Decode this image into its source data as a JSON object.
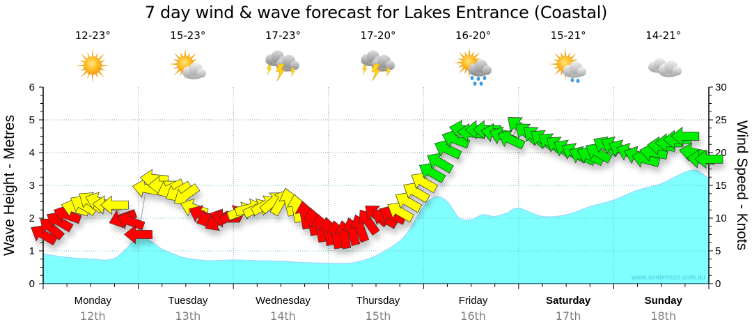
{
  "title": "7 day wind & wave forecast for Lakes Entrance (Coastal)",
  "days": [
    {
      "day": "Monday",
      "date": "12th",
      "temp": "12-23°",
      "icon": "sun-icon",
      "bold": false
    },
    {
      "day": "Tuesday",
      "date": "13th",
      "temp": "15-23°",
      "icon": "sun-cloud-icon",
      "bold": false
    },
    {
      "day": "Wednesday",
      "date": "14th",
      "temp": "17-23°",
      "icon": "thunderstorm-icon",
      "bold": false
    },
    {
      "day": "Thursday",
      "date": "15th",
      "temp": "17-20°",
      "icon": "thunderstorm-icon",
      "bold": false
    },
    {
      "day": "Friday",
      "date": "16th",
      "temp": "16-20°",
      "icon": "sun-cloud-rain-icon",
      "bold": false
    },
    {
      "day": "Saturday",
      "date": "17th",
      "temp": "15-21°",
      "icon": "sun-cloud-showers-icon",
      "bold": true
    },
    {
      "day": "Sunday",
      "date": "18th",
      "temp": "14-21°",
      "icon": "cloud-icon",
      "bold": true
    }
  ],
  "watermark": "www.seabreeze.com.au",
  "colors": {
    "wave_fill": "#80ffff",
    "wave_line": "#99ddff",
    "wind_low": "#ff0000",
    "wind_mid": "#ffff00",
    "wind_high": "#00ee00",
    "grid": "#999999"
  },
  "chart_data": {
    "type": "area",
    "title": "7 day wind & wave forecast for Lakes Entrance (Coastal)",
    "ylabel": "Wave Height - Metres",
    "y2label": "Wind Speed - Knots",
    "ylim": [
      0,
      6
    ],
    "y2lim": [
      0,
      30
    ],
    "yticks": [
      "0",
      "1",
      "2",
      "3",
      "4",
      "5",
      "6"
    ],
    "y2ticks": [
      "0",
      "5",
      "10",
      "15",
      "20",
      "25",
      "30"
    ],
    "x_unit": "hours from Monday 00:00",
    "xlim": [
      0,
      168
    ],
    "grid": true,
    "wave_series": {
      "name": "Wave Height",
      "units": "metres",
      "x": [
        0,
        6,
        12,
        18,
        24,
        27,
        30,
        33,
        36,
        42,
        48,
        54,
        60,
        66,
        72,
        78,
        84,
        90,
        93,
        96,
        99,
        102,
        105,
        108,
        111,
        114,
        117,
        120,
        126,
        132,
        138,
        144,
        150,
        156,
        162,
        165,
        168
      ],
      "values": [
        0.9,
        0.8,
        0.75,
        0.77,
        1.4,
        1.3,
        1.05,
        0.9,
        0.78,
        0.7,
        0.72,
        0.7,
        0.68,
        0.64,
        0.62,
        0.63,
        0.85,
        1.3,
        1.75,
        2.35,
        2.65,
        2.5,
        2.0,
        1.95,
        2.1,
        2.05,
        2.15,
        2.3,
        2.05,
        2.1,
        2.35,
        2.55,
        2.85,
        3.05,
        3.4,
        3.45,
        3.2
      ]
    },
    "wind_series": {
      "name": "Wind Speed",
      "units": "knots",
      "direction_note": "arrow pointing angle in degrees (0 = right, 90 = up, 180 = left)",
      "points": [
        {
          "t": 0,
          "speed": 7.5,
          "dir": 150
        },
        {
          "t": 2,
          "speed": 8.5,
          "dir": 140
        },
        {
          "t": 4,
          "speed": 9.5,
          "dir": 150
        },
        {
          "t": 6,
          "speed": 10.5,
          "dir": 160
        },
        {
          "t": 8,
          "speed": 11.5,
          "dir": 165
        },
        {
          "t": 10,
          "speed": 12,
          "dir": 150
        },
        {
          "t": 12,
          "speed": 12.5,
          "dir": 145
        },
        {
          "t": 14,
          "speed": 12.5,
          "dir": 160
        },
        {
          "t": 16,
          "speed": 12,
          "dir": 175
        },
        {
          "t": 18,
          "speed": 12,
          "dir": 180
        },
        {
          "t": 20,
          "speed": 10,
          "dir": 200
        },
        {
          "t": 22,
          "speed": 9.5,
          "dir": 160
        },
        {
          "t": 24,
          "speed": 7.5,
          "dir": 180
        },
        {
          "t": 26,
          "speed": 14.5,
          "dir": 170
        },
        {
          "t": 28,
          "speed": 16,
          "dir": 175
        },
        {
          "t": 30,
          "speed": 15,
          "dir": 180
        },
        {
          "t": 32,
          "speed": 14.5,
          "dir": 205
        },
        {
          "t": 34,
          "speed": 14,
          "dir": 210
        },
        {
          "t": 36,
          "speed": 13.5,
          "dir": 215
        },
        {
          "t": 38,
          "speed": 11.5,
          "dir": 160
        },
        {
          "t": 40,
          "speed": 10.5,
          "dir": 155
        },
        {
          "t": 42,
          "speed": 10,
          "dir": 200
        },
        {
          "t": 44,
          "speed": 9.5,
          "dir": 210
        },
        {
          "t": 46,
          "speed": 10,
          "dir": 180
        },
        {
          "t": 48,
          "speed": 10.5,
          "dir": 25
        },
        {
          "t": 50,
          "speed": 11,
          "dir": 20
        },
        {
          "t": 52,
          "speed": 11.5,
          "dir": 15
        },
        {
          "t": 54,
          "speed": 11.5,
          "dir": 25
        },
        {
          "t": 56,
          "speed": 12,
          "dir": 30
        },
        {
          "t": 58,
          "speed": 12.5,
          "dir": 40
        },
        {
          "t": 60,
          "speed": 12.5,
          "dir": 60
        },
        {
          "t": 62,
          "speed": 12.5,
          "dir": 105
        },
        {
          "t": 64,
          "speed": 11.5,
          "dir": 100
        },
        {
          "t": 66,
          "speed": 10.5,
          "dir": 100
        },
        {
          "t": 68,
          "speed": 9.5,
          "dir": 100
        },
        {
          "t": 70,
          "speed": 8.5,
          "dir": 100
        },
        {
          "t": 72,
          "speed": 8,
          "dir": 100
        },
        {
          "t": 74,
          "speed": 7.5,
          "dir": 100
        },
        {
          "t": 76,
          "speed": 7.5,
          "dir": 100
        },
        {
          "t": 78,
          "speed": 8,
          "dir": 105
        },
        {
          "t": 80,
          "speed": 8.5,
          "dir": 110
        },
        {
          "t": 82,
          "speed": 9.5,
          "dir": 125
        },
        {
          "t": 84,
          "speed": 10.5,
          "dir": 140
        },
        {
          "t": 86,
          "speed": 10,
          "dir": 150
        },
        {
          "t": 88,
          "speed": 10.5,
          "dir": 155
        },
        {
          "t": 90,
          "speed": 11,
          "dir": 150
        },
        {
          "t": 92,
          "speed": 12.5,
          "dir": 150
        },
        {
          "t": 94,
          "speed": 14,
          "dir": 150
        },
        {
          "t": 96,
          "speed": 15.5,
          "dir": 150
        },
        {
          "t": 98,
          "speed": 17,
          "dir": 150
        },
        {
          "t": 100,
          "speed": 18.5,
          "dir": 150
        },
        {
          "t": 102,
          "speed": 20.5,
          "dir": 155
        },
        {
          "t": 104,
          "speed": 22,
          "dir": 160
        },
        {
          "t": 106,
          "speed": 23.5,
          "dir": 170
        },
        {
          "t": 108,
          "speed": 23,
          "dir": 175
        },
        {
          "t": 110,
          "speed": 23.5,
          "dir": 180
        },
        {
          "t": 112,
          "speed": 23.5,
          "dir": 180
        },
        {
          "t": 114,
          "speed": 23,
          "dir": 170
        },
        {
          "t": 116,
          "speed": 22.5,
          "dir": 160
        },
        {
          "t": 118,
          "speed": 22,
          "dir": 155
        },
        {
          "t": 120,
          "speed": 24,
          "dir": 140
        },
        {
          "t": 122,
          "speed": 23,
          "dir": 140
        },
        {
          "t": 124,
          "speed": 22.5,
          "dir": 140
        },
        {
          "t": 126,
          "speed": 22,
          "dir": 145
        },
        {
          "t": 128,
          "speed": 21.5,
          "dir": 145
        },
        {
          "t": 130,
          "speed": 21,
          "dir": 145
        },
        {
          "t": 132,
          "speed": 20.5,
          "dir": 150
        },
        {
          "t": 134,
          "speed": 20,
          "dir": 150
        },
        {
          "t": 136,
          "speed": 19.5,
          "dir": 155
        },
        {
          "t": 138,
          "speed": 19.5,
          "dir": 155
        },
        {
          "t": 140,
          "speed": 20,
          "dir": 150
        },
        {
          "t": 142,
          "speed": 21,
          "dir": 150
        },
        {
          "t": 144,
          "speed": 21,
          "dir": 155
        },
        {
          "t": 146,
          "speed": 20.5,
          "dir": 155
        },
        {
          "t": 148,
          "speed": 20,
          "dir": 160
        },
        {
          "t": 150,
          "speed": 19.5,
          "dir": 160
        },
        {
          "t": 152,
          "speed": 19,
          "dir": 165
        },
        {
          "t": 154,
          "speed": 20,
          "dir": 170
        },
        {
          "t": 156,
          "speed": 21,
          "dir": 175
        },
        {
          "t": 158,
          "speed": 21.5,
          "dir": 180
        },
        {
          "t": 160,
          "speed": 22,
          "dir": 180
        },
        {
          "t": 162,
          "speed": 22.5,
          "dir": 180
        },
        {
          "t": 164,
          "speed": 20,
          "dir": 170
        },
        {
          "t": 166,
          "speed": 19,
          "dir": 175
        },
        {
          "t": 168,
          "speed": 19,
          "dir": 180
        }
      ]
    }
  }
}
